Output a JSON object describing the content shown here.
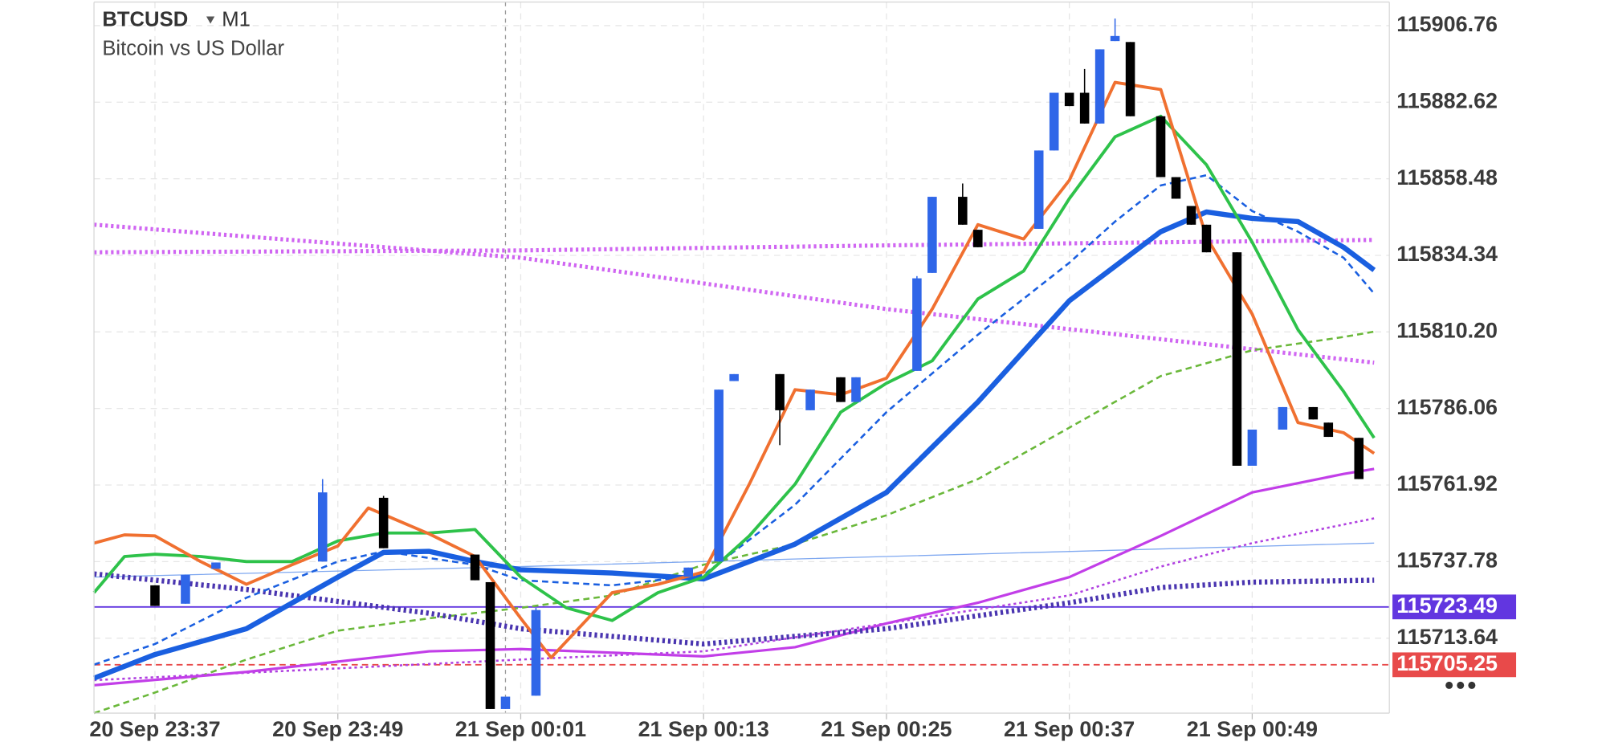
{
  "chart_data": {
    "type": "candlestick",
    "title": "BTCUSD",
    "timeframe": "M1",
    "subtitle": "Bitcoin vs US Dollar",
    "xlim": [
      "20 Sep 23:33",
      "21 Sep 00:58"
    ],
    "xticks": [
      "20 Sep 23:37",
      "20 Sep 23:49",
      "21 Sep 00:01",
      "21 Sep 00:13",
      "21 Sep 00:25",
      "21 Sep 00:37",
      "21 Sep 00:49"
    ],
    "ylim": [
      115690.0,
      115914.2
    ],
    "yticks": [
      115906.76,
      115882.62,
      115858.48,
      115834.34,
      {
        "value": 115810.2,
        "label": "115810.20"
      },
      115786.06,
      115761.92,
      115737.78,
      115713.64
    ],
    "grid": true,
    "up_color": "#2f66e8",
    "down_color": "#000000",
    "vline": "21 Sep 00:00",
    "price_lines": [
      {
        "value": 115723.49,
        "color": "#6236e0",
        "style": "solid"
      },
      {
        "value": 115705.25,
        "color": "#e84a4a",
        "style": "dashed"
      }
    ],
    "candles": [
      {
        "x": "20 Sep 23:37",
        "open": 115730.3,
        "high": 115730.3,
        "low": 115723.8,
        "close": 115723.8
      },
      {
        "x": "20 Sep 23:39",
        "open": 115724.5,
        "high": 115733.6,
        "low": 115724.5,
        "close": 115733.6
      },
      {
        "x": "20 Sep 23:41",
        "open": 115735.5,
        "high": 115737.5,
        "low": 115735.5,
        "close": 115737.5
      },
      {
        "x": "20 Sep 23:48",
        "open": 115737.8,
        "high": 115763.8,
        "low": 115737.8,
        "close": 115759.6
      },
      {
        "x": "20 Sep 23:52",
        "open": 115757.9,
        "high": 115758.5,
        "low": 115742.0,
        "close": 115742.0
      },
      {
        "x": "20 Sep 23:58",
        "open": 115740.0,
        "high": 115740.0,
        "low": 115731.9,
        "close": 115731.9
      },
      {
        "x": "20 Sep 23:59",
        "open": 115731.3,
        "high": 115731.3,
        "low": 115691.3,
        "close": 115691.3
      },
      {
        "x": "21 Sep 00:00",
        "open": 115691.3,
        "high": 115695.2,
        "low": 115691.3,
        "close": 115695.2
      },
      {
        "x": "21 Sep 00:02",
        "open": 115695.5,
        "high": 115723.2,
        "low": 115695.5,
        "close": 115722.5
      },
      {
        "x": "21 Sep 00:12",
        "open": 115733.0,
        "high": 115735.9,
        "low": 115733.0,
        "close": 115735.9
      },
      {
        "x": "21 Sep 00:14",
        "open": 115737.8,
        "high": 115792.0,
        "low": 115737.8,
        "close": 115792.0
      },
      {
        "x": "21 Sep 00:15",
        "open": 115794.7,
        "high": 115796.9,
        "low": 115794.7,
        "close": 115796.9
      },
      {
        "x": "21 Sep 00:18",
        "open": 115796.9,
        "high": 115796.9,
        "low": 115774.5,
        "close": 115785.5
      },
      {
        "x": "21 Sep 00:20",
        "open": 115785.5,
        "high": 115792.0,
        "low": 115785.5,
        "close": 115792.0
      },
      {
        "x": "21 Sep 00:22",
        "open": 115795.9,
        "high": 115795.9,
        "low": 115788.1,
        "close": 115788.1
      },
      {
        "x": "21 Sep 00:23",
        "open": 115788.1,
        "high": 115795.9,
        "low": 115788.1,
        "close": 115795.9
      },
      {
        "x": "21 Sep 00:27",
        "open": 115797.9,
        "high": 115827.8,
        "low": 115797.9,
        "close": 115827.1
      },
      {
        "x": "21 Sep 00:28",
        "open": 115828.8,
        "high": 115852.8,
        "low": 115828.8,
        "close": 115852.8
      },
      {
        "x": "21 Sep 00:30",
        "open": 115852.8,
        "high": 115857.0,
        "low": 115844.0,
        "close": 115844.0
      },
      {
        "x": "21 Sep 00:31",
        "open": 115842.4,
        "high": 115842.4,
        "low": 115836.9,
        "close": 115836.9
      },
      {
        "x": "21 Sep 00:35",
        "open": 115842.7,
        "high": 115867.4,
        "low": 115842.7,
        "close": 115867.4
      },
      {
        "x": "21 Sep 00:36",
        "open": 115867.4,
        "high": 115885.6,
        "low": 115867.4,
        "close": 115885.6
      },
      {
        "x": "21 Sep 00:37",
        "open": 115885.6,
        "high": 115885.6,
        "low": 115881.4,
        "close": 115881.4
      },
      {
        "x": "21 Sep 00:38",
        "open": 115885.6,
        "high": 115893.1,
        "low": 115875.9,
        "close": 115875.9
      },
      {
        "x": "21 Sep 00:39",
        "open": 115875.9,
        "high": 115899.3,
        "low": 115875.9,
        "close": 115899.3
      },
      {
        "x": "21 Sep 00:40",
        "open": 115901.9,
        "high": 115909.0,
        "low": 115901.9,
        "close": 115903.5
      },
      {
        "x": "21 Sep 00:41",
        "open": 115901.6,
        "high": 115901.6,
        "low": 115878.2,
        "close": 115878.2
      },
      {
        "x": "21 Sep 00:43",
        "open": 115878.2,
        "high": 115878.2,
        "low": 115859.0,
        "close": 115859.0
      },
      {
        "x": "21 Sep 00:44",
        "open": 115859.0,
        "high": 115859.0,
        "low": 115852.2,
        "close": 115852.2
      },
      {
        "x": "21 Sep 00:45",
        "open": 115849.9,
        "high": 115849.9,
        "low": 115844.0,
        "close": 115844.0
      },
      {
        "x": "21 Sep 00:46",
        "open": 115844.0,
        "high": 115844.0,
        "low": 115835.3,
        "close": 115835.3
      },
      {
        "x": "21 Sep 00:48",
        "open": 115835.3,
        "high": 115835.3,
        "low": 115768.0,
        "close": 115768.0
      },
      {
        "x": "21 Sep 00:49",
        "open": 115768.0,
        "high": 115779.4,
        "low": 115768.0,
        "close": 115779.4
      },
      {
        "x": "21 Sep 00:51",
        "open": 115779.4,
        "high": 115786.5,
        "low": 115779.4,
        "close": 115786.5
      },
      {
        "x": "21 Sep 00:53",
        "open": 115786.5,
        "high": 115786.5,
        "low": 115782.6,
        "close": 115782.6
      },
      {
        "x": "21 Sep 00:54",
        "open": 115781.6,
        "high": 115781.6,
        "low": 115777.1,
        "close": 115777.1
      },
      {
        "x": "21 Sep 00:56",
        "open": 115776.8,
        "high": 115776.8,
        "low": 115763.8,
        "close": 115763.8
      }
    ],
    "overlays": [
      {
        "color": "#7fa8f0",
        "style": "solid",
        "width": 1,
        "x": [
          "20 Sep 23:33",
          "21 Sep 00:01",
          "21 Sep 00:25",
          "21 Sep 00:57"
        ],
        "values": [
          115732.9,
          115736.2,
          115739.4,
          115743.6
        ]
      },
      {
        "color": "#d066f2",
        "style": "dotted",
        "width": 4,
        "x": [
          "20 Sep 23:33",
          "21 Sep 00:01",
          "21 Sep 00:25",
          "21 Sep 00:57"
        ],
        "values": [
          115844.0,
          115833.6,
          115817.4,
          115800.5
        ]
      },
      {
        "color": "#d066f2",
        "style": "dotted",
        "width": 4,
        "x": [
          "20 Sep 23:33",
          "21 Sep 00:01",
          "21 Sep 00:25",
          "21 Sep 00:57"
        ],
        "values": [
          115835.3,
          115835.9,
          115837.5,
          115839.2
        ]
      },
      {
        "color": "#6ab83a",
        "style": "dashed",
        "width": 2,
        "x": [
          "20 Sep 23:33",
          "20 Sep 23:37",
          "20 Sep 23:43",
          "20 Sep 23:49",
          "20 Sep 23:55",
          "21 Sep 00:01",
          "21 Sep 00:07",
          "21 Sep 00:13",
          "21 Sep 00:19",
          "21 Sep 00:25",
          "21 Sep 00:31",
          "21 Sep 00:37",
          "21 Sep 00:43",
          "21 Sep 00:49",
          "21 Sep 00:55",
          "21 Sep 00:57"
        ],
        "values": [
          115690.0,
          115696.5,
          115706.9,
          115716.0,
          115719.9,
          115723.2,
          115727.1,
          115736.8,
          115743.3,
          115752.4,
          115763.8,
          115780.0,
          115796.3,
          115804.4,
          115808.6,
          115810.3
        ]
      },
      {
        "color": "#b040e0",
        "style": "dotted",
        "width": 2,
        "x": [
          "20 Sep 23:33",
          "21 Sep 00:01",
          "21 Sep 00:13",
          "21 Sep 00:25",
          "21 Sep 00:37",
          "21 Sep 00:43",
          "21 Sep 00:49",
          "21 Sep 00:57"
        ],
        "values": [
          115700.4,
          115706.9,
          115709.5,
          115718.3,
          115727.1,
          115736.2,
          115743.6,
          115751.4
        ]
      },
      {
        "color": "#c23ee8",
        "style": "solid",
        "width": 2.5,
        "x": [
          "20 Sep 23:33",
          "20 Sep 23:43",
          "20 Sep 23:55",
          "21 Sep 00:01",
          "21 Sep 00:13",
          "21 Sep 00:19",
          "21 Sep 00:25",
          "21 Sep 00:31",
          "21 Sep 00:37",
          "21 Sep 00:43",
          "21 Sep 00:49",
          "21 Sep 00:55",
          "21 Sep 00:57"
        ],
        "values": [
          115698.8,
          115703.0,
          115709.5,
          115710.2,
          115707.9,
          115710.8,
          115718.3,
          115724.8,
          115732.9,
          115745.9,
          115759.6,
          115765.4,
          115767.0
        ]
      },
      {
        "color": "#4a35b0",
        "style": "dotted",
        "width": 5,
        "x": [
          "20 Sep 23:33",
          "20 Sep 23:43",
          "20 Sep 23:55",
          "21 Sep 00:01",
          "21 Sep 00:13",
          "21 Sep 00:25",
          "21 Sep 00:37",
          "21 Sep 00:43",
          "21 Sep 00:49",
          "21 Sep 00:57"
        ],
        "values": [
          115733.9,
          115729.0,
          115721.5,
          115716.6,
          115711.8,
          115716.6,
          115724.8,
          115729.6,
          115731.3,
          115731.9
        ]
      },
      {
        "color": "#1a5fe0",
        "style": "dashed",
        "width": 2,
        "x": [
          "20 Sep 23:33",
          "20 Sep 23:37",
          "20 Sep 23:43",
          "20 Sep 23:49",
          "20 Sep 23:52",
          "20 Sep 23:58",
          "21 Sep 00:01",
          "21 Sep 00:07",
          "21 Sep 00:13",
          "21 Sep 00:19",
          "21 Sep 00:25",
          "21 Sep 00:31",
          "21 Sep 00:37",
          "21 Sep 00:40",
          "21 Sep 00:43",
          "21 Sep 00:46",
          "21 Sep 00:49",
          "21 Sep 00:52",
          "21 Sep 00:55",
          "21 Sep 00:57"
        ],
        "values": [
          115705.3,
          115711.8,
          115726.4,
          115737.8,
          115741.0,
          115736.8,
          115731.9,
          115730.3,
          115733.6,
          115755.7,
          115784.9,
          115809.3,
          115832.0,
          115845.0,
          115856.4,
          115859.6,
          115848.3,
          115841.8,
          115833.6,
          115822.3
        ]
      },
      {
        "color": "#1a5fe0",
        "style": "solid",
        "width": 5,
        "x": [
          "20 Sep 23:33",
          "20 Sep 23:37",
          "20 Sep 23:43",
          "20 Sep 23:49",
          "20 Sep 23:52",
          "20 Sep 23:55",
          "20 Sep 23:58",
          "21 Sep 00:01",
          "21 Sep 00:07",
          "21 Sep 00:13",
          "21 Sep 00:19",
          "21 Sep 00:25",
          "21 Sep 00:31",
          "21 Sep 00:37",
          "21 Sep 00:43",
          "21 Sep 00:46",
          "21 Sep 00:49",
          "21 Sep 00:52",
          "21 Sep 00:55",
          "21 Sep 00:57"
        ],
        "values": [
          115701.0,
          115708.5,
          115716.6,
          115732.9,
          115740.7,
          115741.0,
          115737.8,
          115735.2,
          115734.2,
          115732.3,
          115743.3,
          115759.6,
          115788.1,
          115820.0,
          115841.8,
          115848.0,
          115846.0,
          115845.0,
          115836.9,
          115829.7
        ]
      },
      {
        "color": "#2ec24a",
        "style": "solid",
        "width": 3,
        "x": [
          "20 Sep 23:33",
          "20 Sep 23:35",
          "20 Sep 23:37",
          "20 Sep 23:40",
          "20 Sep 23:43",
          "20 Sep 23:46",
          "20 Sep 23:49",
          "20 Sep 23:52",
          "20 Sep 23:55",
          "20 Sep 23:58",
          "21 Sep 00:01",
          "21 Sep 00:04",
          "21 Sep 00:07",
          "21 Sep 00:10",
          "21 Sep 00:13",
          "21 Sep 00:16",
          "21 Sep 00:19",
          "21 Sep 00:22",
          "21 Sep 00:25",
          "21 Sep 00:28",
          "21 Sep 00:31",
          "21 Sep 00:34",
          "21 Sep 00:37",
          "21 Sep 00:40",
          "21 Sep 00:43",
          "21 Sep 00:46",
          "21 Sep 00:49",
          "21 Sep 00:52",
          "21 Sep 00:55",
          "21 Sep 00:57"
        ],
        "values": [
          115728.0,
          115739.4,
          115740.1,
          115739.4,
          115737.8,
          115737.8,
          115744.3,
          115746.8,
          115746.8,
          115747.9,
          115732.9,
          115723.2,
          115719.2,
          115728.0,
          115732.9,
          115745.9,
          115762.2,
          115784.9,
          115794.0,
          115801.1,
          115820.6,
          115829.4,
          115852.2,
          115871.7,
          115878.2,
          115862.9,
          115838.5,
          115810.9,
          115791.4,
          115776.8
        ]
      },
      {
        "color": "#f07030",
        "style": "solid",
        "width": 3,
        "x": [
          "20 Sep 23:33",
          "20 Sep 23:35",
          "20 Sep 23:37",
          "20 Sep 23:40",
          "20 Sep 23:43",
          "20 Sep 23:46",
          "20 Sep 23:49",
          "20 Sep 23:51",
          "20 Sep 23:55",
          "20 Sep 23:58",
          "21 Sep 00:01",
          "21 Sep 00:03",
          "21 Sep 00:07",
          "21 Sep 00:10",
          "21 Sep 00:13",
          "21 Sep 00:16",
          "21 Sep 00:19",
          "21 Sep 00:22",
          "21 Sep 00:25",
          "21 Sep 00:28",
          "21 Sep 00:31",
          "21 Sep 00:34",
          "21 Sep 00:37",
          "21 Sep 00:40",
          "21 Sep 00:43",
          "21 Sep 00:46",
          "21 Sep 00:49",
          "21 Sep 00:52",
          "21 Sep 00:55",
          "21 Sep 00:57"
        ],
        "values": [
          115743.6,
          115746.2,
          115745.9,
          115737.8,
          115730.6,
          115736.8,
          115742.7,
          115754.7,
          115746.5,
          115739.4,
          115719.9,
          115707.5,
          115728.0,
          115730.6,
          115734.5,
          115762.2,
          115792.0,
          115790.4,
          115795.6,
          115817.4,
          115844.0,
          115839.5,
          115858.0,
          115888.9,
          115886.6,
          115840.1,
          115815.8,
          115781.6,
          115778.4,
          115771.9
        ]
      }
    ]
  }
}
